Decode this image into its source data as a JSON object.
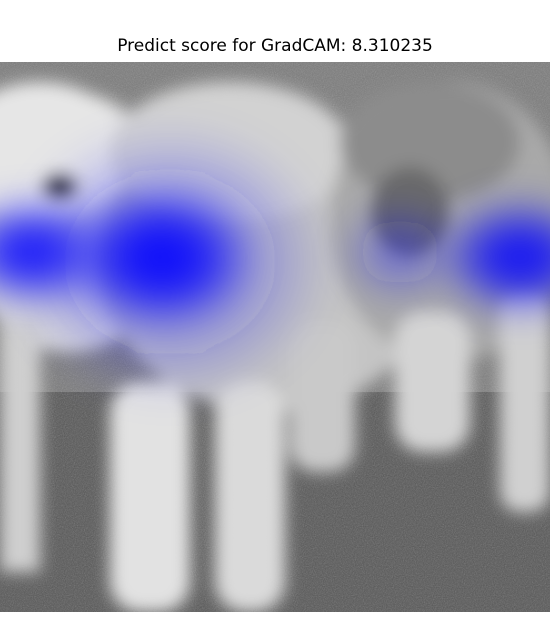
{
  "figure": {
    "title": "Predict score for GradCAM: 8.310235",
    "image_subject": "grayscale photo of white fluffy lambs with GradCAM heatmap overlay",
    "heatmap_color": "#0000ff",
    "background_color": "#ffffff"
  }
}
